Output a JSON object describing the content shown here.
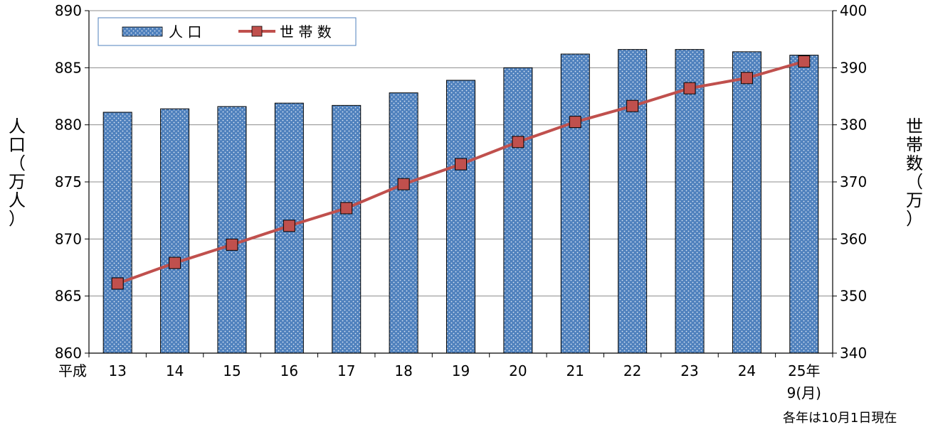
{
  "chart_data": {
    "type": "bar",
    "categories": [
      "13",
      "14",
      "15",
      "16",
      "17",
      "18",
      "19",
      "20",
      "21",
      "22",
      "23",
      "24",
      "25年"
    ],
    "category_prefix": "平成",
    "category_sub": [
      "",
      "",
      "",
      "",
      "",
      "",
      "",
      "",
      "",
      "",
      "",
      "",
      "9(月)"
    ],
    "series": [
      {
        "name": "人 口",
        "kind": "bar",
        "axis": "left",
        "color": "#4f81bd",
        "values": [
          881.1,
          881.4,
          881.6,
          881.9,
          881.7,
          882.8,
          883.9,
          885.0,
          886.2,
          886.6,
          886.6,
          886.4,
          886.1
        ]
      },
      {
        "name": "世 帯 数",
        "kind": "line",
        "axis": "right",
        "color": "#c0504d",
        "marker_color": "#c0504d",
        "values": [
          352.2,
          355.8,
          359.0,
          362.3,
          365.4,
          369.6,
          373.1,
          377.0,
          380.5,
          383.3,
          386.4,
          388.2,
          391.1
        ]
      }
    ],
    "y_left": {
      "label": "人口（万人）",
      "range": [
        860,
        890
      ],
      "ticks": [
        "860",
        "865",
        "870",
        "875",
        "880",
        "885",
        "890"
      ]
    },
    "y_right": {
      "label": "世帯数（万）",
      "range": [
        340,
        400
      ],
      "ticks": [
        "340",
        "350",
        "360",
        "370",
        "380",
        "390",
        "400"
      ]
    },
    "legend": {
      "placement": "top-left"
    },
    "grid": true,
    "note": "各年は10月1日現在"
  }
}
